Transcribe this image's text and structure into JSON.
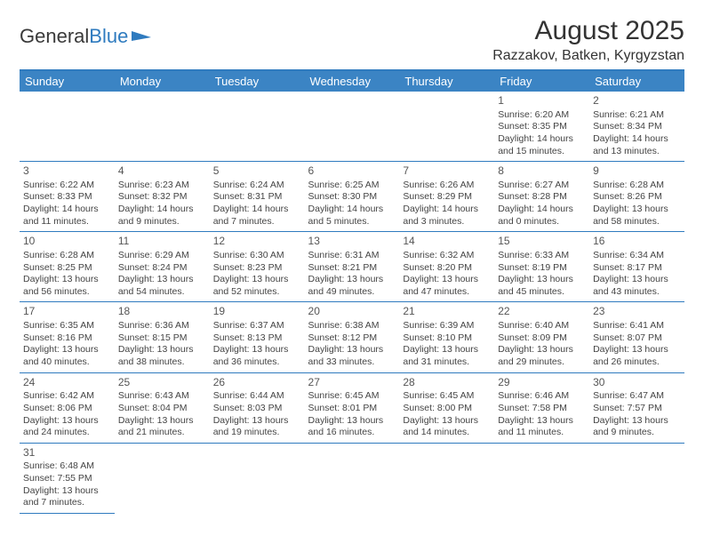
{
  "logo": {
    "text1": "General",
    "text2": "Blue"
  },
  "title": "August 2025",
  "location": "Razzakov, Batken, Kyrgyzstan",
  "colors": {
    "header_bg": "#3b84c4",
    "header_text": "#ffffff",
    "rule": "#2f7bbf",
    "body_text": "#444444",
    "background": "#ffffff"
  },
  "fonts": {
    "title_size": 30,
    "location_size": 16,
    "dayhead_size": 13,
    "cell_size": 10.5
  },
  "day_headers": [
    "Sunday",
    "Monday",
    "Tuesday",
    "Wednesday",
    "Thursday",
    "Friday",
    "Saturday"
  ],
  "weeks": [
    [
      null,
      null,
      null,
      null,
      null,
      {
        "n": "1",
        "sr": "Sunrise: 6:20 AM",
        "ss": "Sunset: 8:35 PM",
        "dl": "Daylight: 14 hours and 15 minutes."
      },
      {
        "n": "2",
        "sr": "Sunrise: 6:21 AM",
        "ss": "Sunset: 8:34 PM",
        "dl": "Daylight: 14 hours and 13 minutes."
      }
    ],
    [
      {
        "n": "3",
        "sr": "Sunrise: 6:22 AM",
        "ss": "Sunset: 8:33 PM",
        "dl": "Daylight: 14 hours and 11 minutes."
      },
      {
        "n": "4",
        "sr": "Sunrise: 6:23 AM",
        "ss": "Sunset: 8:32 PM",
        "dl": "Daylight: 14 hours and 9 minutes."
      },
      {
        "n": "5",
        "sr": "Sunrise: 6:24 AM",
        "ss": "Sunset: 8:31 PM",
        "dl": "Daylight: 14 hours and 7 minutes."
      },
      {
        "n": "6",
        "sr": "Sunrise: 6:25 AM",
        "ss": "Sunset: 8:30 PM",
        "dl": "Daylight: 14 hours and 5 minutes."
      },
      {
        "n": "7",
        "sr": "Sunrise: 6:26 AM",
        "ss": "Sunset: 8:29 PM",
        "dl": "Daylight: 14 hours and 3 minutes."
      },
      {
        "n": "8",
        "sr": "Sunrise: 6:27 AM",
        "ss": "Sunset: 8:28 PM",
        "dl": "Daylight: 14 hours and 0 minutes."
      },
      {
        "n": "9",
        "sr": "Sunrise: 6:28 AM",
        "ss": "Sunset: 8:26 PM",
        "dl": "Daylight: 13 hours and 58 minutes."
      }
    ],
    [
      {
        "n": "10",
        "sr": "Sunrise: 6:28 AM",
        "ss": "Sunset: 8:25 PM",
        "dl": "Daylight: 13 hours and 56 minutes."
      },
      {
        "n": "11",
        "sr": "Sunrise: 6:29 AM",
        "ss": "Sunset: 8:24 PM",
        "dl": "Daylight: 13 hours and 54 minutes."
      },
      {
        "n": "12",
        "sr": "Sunrise: 6:30 AM",
        "ss": "Sunset: 8:23 PM",
        "dl": "Daylight: 13 hours and 52 minutes."
      },
      {
        "n": "13",
        "sr": "Sunrise: 6:31 AM",
        "ss": "Sunset: 8:21 PM",
        "dl": "Daylight: 13 hours and 49 minutes."
      },
      {
        "n": "14",
        "sr": "Sunrise: 6:32 AM",
        "ss": "Sunset: 8:20 PM",
        "dl": "Daylight: 13 hours and 47 minutes."
      },
      {
        "n": "15",
        "sr": "Sunrise: 6:33 AM",
        "ss": "Sunset: 8:19 PM",
        "dl": "Daylight: 13 hours and 45 minutes."
      },
      {
        "n": "16",
        "sr": "Sunrise: 6:34 AM",
        "ss": "Sunset: 8:17 PM",
        "dl": "Daylight: 13 hours and 43 minutes."
      }
    ],
    [
      {
        "n": "17",
        "sr": "Sunrise: 6:35 AM",
        "ss": "Sunset: 8:16 PM",
        "dl": "Daylight: 13 hours and 40 minutes."
      },
      {
        "n": "18",
        "sr": "Sunrise: 6:36 AM",
        "ss": "Sunset: 8:15 PM",
        "dl": "Daylight: 13 hours and 38 minutes."
      },
      {
        "n": "19",
        "sr": "Sunrise: 6:37 AM",
        "ss": "Sunset: 8:13 PM",
        "dl": "Daylight: 13 hours and 36 minutes."
      },
      {
        "n": "20",
        "sr": "Sunrise: 6:38 AM",
        "ss": "Sunset: 8:12 PM",
        "dl": "Daylight: 13 hours and 33 minutes."
      },
      {
        "n": "21",
        "sr": "Sunrise: 6:39 AM",
        "ss": "Sunset: 8:10 PM",
        "dl": "Daylight: 13 hours and 31 minutes."
      },
      {
        "n": "22",
        "sr": "Sunrise: 6:40 AM",
        "ss": "Sunset: 8:09 PM",
        "dl": "Daylight: 13 hours and 29 minutes."
      },
      {
        "n": "23",
        "sr": "Sunrise: 6:41 AM",
        "ss": "Sunset: 8:07 PM",
        "dl": "Daylight: 13 hours and 26 minutes."
      }
    ],
    [
      {
        "n": "24",
        "sr": "Sunrise: 6:42 AM",
        "ss": "Sunset: 8:06 PM",
        "dl": "Daylight: 13 hours and 24 minutes."
      },
      {
        "n": "25",
        "sr": "Sunrise: 6:43 AM",
        "ss": "Sunset: 8:04 PM",
        "dl": "Daylight: 13 hours and 21 minutes."
      },
      {
        "n": "26",
        "sr": "Sunrise: 6:44 AM",
        "ss": "Sunset: 8:03 PM",
        "dl": "Daylight: 13 hours and 19 minutes."
      },
      {
        "n": "27",
        "sr": "Sunrise: 6:45 AM",
        "ss": "Sunset: 8:01 PM",
        "dl": "Daylight: 13 hours and 16 minutes."
      },
      {
        "n": "28",
        "sr": "Sunrise: 6:45 AM",
        "ss": "Sunset: 8:00 PM",
        "dl": "Daylight: 13 hours and 14 minutes."
      },
      {
        "n": "29",
        "sr": "Sunrise: 6:46 AM",
        "ss": "Sunset: 7:58 PM",
        "dl": "Daylight: 13 hours and 11 minutes."
      },
      {
        "n": "30",
        "sr": "Sunrise: 6:47 AM",
        "ss": "Sunset: 7:57 PM",
        "dl": "Daylight: 13 hours and 9 minutes."
      }
    ],
    [
      {
        "n": "31",
        "sr": "Sunrise: 6:48 AM",
        "ss": "Sunset: 7:55 PM",
        "dl": "Daylight: 13 hours and 7 minutes."
      },
      null,
      null,
      null,
      null,
      null,
      null
    ]
  ]
}
